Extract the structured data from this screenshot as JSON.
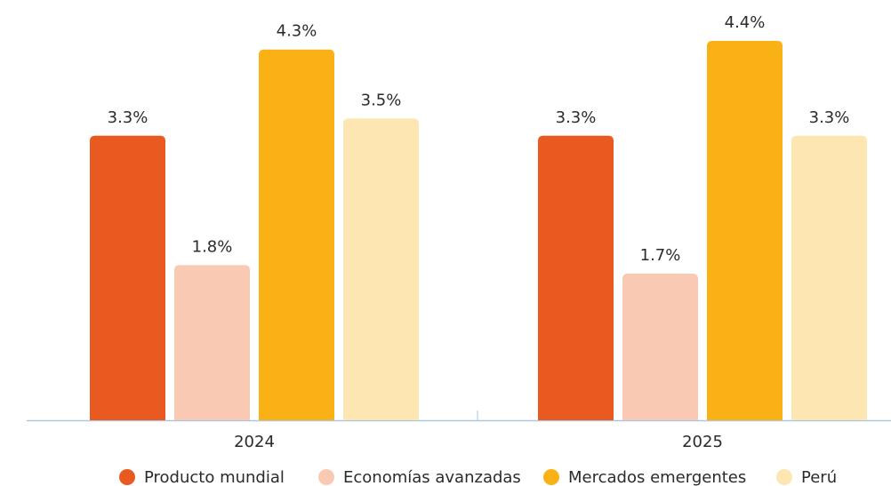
{
  "chart_data": {
    "type": "bar",
    "categories": [
      "2024",
      "2025"
    ],
    "series": [
      {
        "name": "Producto mundial",
        "color": "#e95a20",
        "values": [
          3.3,
          3.3
        ],
        "value_labels": [
          "3.3%",
          "3.3%"
        ]
      },
      {
        "name": "Economías avanzadas",
        "color": "#f9c9b4",
        "values": [
          1.8,
          1.7
        ],
        "value_labels": [
          "1.8%",
          "1.7%"
        ]
      },
      {
        "name": "Mercados emergentes",
        "color": "#f9b116",
        "values": [
          4.3,
          4.4
        ],
        "value_labels": [
          "4.3%",
          "4.4%"
        ]
      },
      {
        "name": "Perú",
        "color": "#fde6b2",
        "values": [
          3.5,
          3.3
        ],
        "value_labels": [
          "3.5%",
          "3.3%"
        ]
      }
    ]
  }
}
